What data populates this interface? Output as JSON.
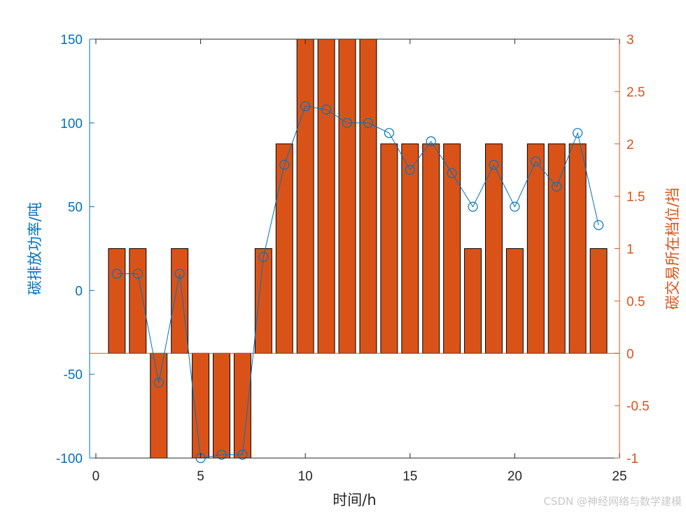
{
  "chart_data": {
    "type": "bar+line",
    "x_label": "时间/h",
    "y_left_label": "碳排放功率/吨",
    "y_right_label": "碳交易所在档位/挡",
    "x_range": [
      -0.3,
      25
    ],
    "x_ticks": [
      0,
      5,
      10,
      15,
      20,
      25
    ],
    "y_left_range": [
      -100,
      150
    ],
    "y_left_ticks": [
      -100,
      -50,
      0,
      50,
      100,
      150
    ],
    "y_right_range": [
      -1,
      3
    ],
    "y_right_ticks": [
      "-1",
      "-0.5",
      "0",
      "0.5",
      "1",
      "1.5",
      "2",
      "2.5",
      "3"
    ],
    "left_axis_color": "#0072BD",
    "right_axis_color": "#D95319",
    "line_series": {
      "x": [
        1,
        2,
        3,
        4,
        5,
        6,
        7,
        8,
        9,
        10,
        11,
        12,
        13,
        14,
        15,
        16,
        17,
        18,
        19,
        20,
        21,
        22,
        23,
        24
      ],
      "values": [
        10,
        10,
        -55,
        10,
        -100,
        -98,
        -98,
        20,
        75,
        110,
        108,
        100,
        100,
        94,
        72,
        89,
        70,
        50,
        75,
        50,
        77,
        62,
        94,
        39
      ],
      "markers_at": [
        5,
        14,
        16,
        18,
        20,
        23,
        24
      ]
    },
    "bar_series": {
      "x": [
        1,
        2,
        3,
        4,
        5,
        6,
        7,
        8,
        9,
        10,
        11,
        12,
        13,
        14,
        15,
        16,
        17,
        18,
        19,
        20,
        21,
        22,
        23,
        24
      ],
      "values": [
        1,
        1,
        -1,
        1,
        -1,
        -1,
        -1,
        1,
        2,
        3,
        3,
        3,
        3,
        2,
        2,
        2,
        2,
        1,
        2,
        1,
        2,
        2,
        2,
        1
      ]
    }
  },
  "watermark": "CSDN @神经网络与数学建模"
}
